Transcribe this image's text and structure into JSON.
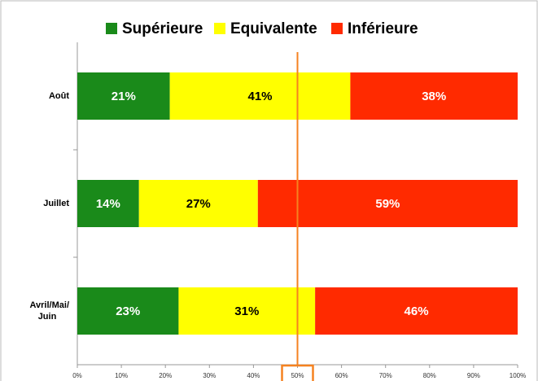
{
  "chart_data": {
    "type": "stacked_barh",
    "categories": [
      "Août",
      "Juillet",
      "Avril/Mai/Juin"
    ],
    "series": [
      {
        "name": "Supérieure",
        "color": "#1a8a1a",
        "label_color": "#ffffff",
        "values": [
          21,
          14,
          23
        ],
        "value_labels": [
          "21%",
          "14%",
          "23%"
        ]
      },
      {
        "name": "Equivalente",
        "color": "#ffff00",
        "label_color": "#000000",
        "values": [
          41,
          27,
          31
        ],
        "value_labels": [
          "41%",
          "27%",
          "31%"
        ]
      },
      {
        "name": "Inférieure",
        "color": "#ff2a00",
        "label_color": "#ffffff",
        "values": [
          38,
          59,
          46
        ],
        "value_labels": [
          "38%",
          "59%",
          "46%"
        ]
      }
    ],
    "xlim": [
      0,
      100
    ],
    "xticks": [
      {
        "value": 0,
        "label": "0%"
      },
      {
        "value": 10,
        "label": "10%"
      },
      {
        "value": 20,
        "label": "20%"
      },
      {
        "value": 30,
        "label": "30%"
      },
      {
        "value": 40,
        "label": "40%"
      },
      {
        "value": 50,
        "label": "50%"
      },
      {
        "value": 60,
        "label": "60%"
      },
      {
        "value": 70,
        "label": "70%"
      },
      {
        "value": 80,
        "label": "80%"
      },
      {
        "value": 90,
        "label": "90%"
      },
      {
        "value": 100,
        "label": "100%"
      }
    ],
    "reference_x": 50,
    "reference_color": "#f58220",
    "legend": "top"
  }
}
